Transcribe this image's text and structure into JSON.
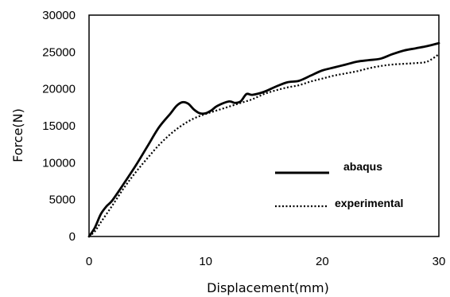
{
  "chart_data": {
    "type": "line",
    "title": "",
    "xlabel": "Displacement(mm)",
    "ylabel": "Force(N)",
    "xlim": [
      0,
      30
    ],
    "ylim": [
      0,
      30000
    ],
    "xticks": [
      "0",
      "10",
      "20",
      "30"
    ],
    "yticks": [
      "0",
      "5000",
      "10000",
      "15000",
      "20000",
      "25000",
      "30000"
    ],
    "grid": false,
    "legend_position": "lower-right",
    "series": [
      {
        "name": "abaqus",
        "style": "solid",
        "color": "#000000",
        "points": [
          [
            0,
            0
          ],
          [
            0.5,
            1200
          ],
          [
            1,
            3000
          ],
          [
            1.5,
            4100
          ],
          [
            2,
            4900
          ],
          [
            3,
            7200
          ],
          [
            4,
            9600
          ],
          [
            5,
            12200
          ],
          [
            6,
            14800
          ],
          [
            7,
            16700
          ],
          [
            7.5,
            17700
          ],
          [
            8,
            18200
          ],
          [
            8.5,
            18000
          ],
          [
            9,
            17200
          ],
          [
            9.5,
            16700
          ],
          [
            10,
            16700
          ],
          [
            10.5,
            17100
          ],
          [
            11,
            17700
          ],
          [
            12,
            18300
          ],
          [
            12.5,
            18100
          ],
          [
            13,
            18300
          ],
          [
            13.5,
            19300
          ],
          [
            14,
            19200
          ],
          [
            15,
            19600
          ],
          [
            16,
            20300
          ],
          [
            17,
            20900
          ],
          [
            18,
            21100
          ],
          [
            19,
            21800
          ],
          [
            20,
            22500
          ],
          [
            21,
            22900
          ],
          [
            22,
            23300
          ],
          [
            23,
            23700
          ],
          [
            24,
            23900
          ],
          [
            25,
            24100
          ],
          [
            26,
            24700
          ],
          [
            27,
            25200
          ],
          [
            28,
            25500
          ],
          [
            29,
            25800
          ],
          [
            30,
            26200
          ]
        ]
      },
      {
        "name": "experimental",
        "style": "dotted",
        "color": "#000000",
        "points": [
          [
            0,
            0
          ],
          [
            0.5,
            700
          ],
          [
            1,
            1900
          ],
          [
            2,
            4200
          ],
          [
            3,
            6600
          ],
          [
            4,
            8700
          ],
          [
            5,
            10600
          ],
          [
            6,
            12400
          ],
          [
            7,
            13900
          ],
          [
            8,
            15100
          ],
          [
            9,
            16000
          ],
          [
            10,
            16600
          ],
          [
            11,
            17100
          ],
          [
            12,
            17600
          ],
          [
            13,
            18100
          ],
          [
            14,
            18600
          ],
          [
            15,
            19300
          ],
          [
            16,
            19800
          ],
          [
            17,
            20200
          ],
          [
            18,
            20500
          ],
          [
            19,
            21000
          ],
          [
            20,
            21400
          ],
          [
            21,
            21800
          ],
          [
            22,
            22100
          ],
          [
            23,
            22400
          ],
          [
            24,
            22800
          ],
          [
            25,
            23100
          ],
          [
            26,
            23300
          ],
          [
            27,
            23400
          ],
          [
            28,
            23500
          ],
          [
            29,
            23700
          ],
          [
            30,
            24700
          ]
        ]
      }
    ]
  }
}
